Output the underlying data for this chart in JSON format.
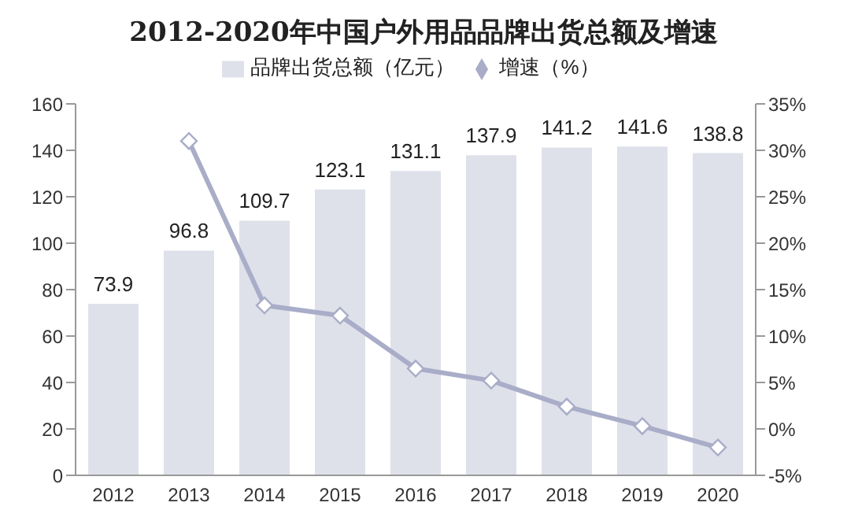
{
  "chart_data": {
    "type": "bar",
    "title": "2012-2020年中国户外用品品牌出货总额及增速",
    "categories": [
      "2012",
      "2013",
      "2014",
      "2015",
      "2016",
      "2017",
      "2018",
      "2019",
      "2020"
    ],
    "series": [
      {
        "name": "品牌出货总额（亿元）",
        "color": "#dfe1ea",
        "values": [
          73.9,
          96.8,
          109.7,
          123.1,
          131.1,
          137.9,
          141.2,
          141.6,
          138.8
        ],
        "value_labels": [
          "73.9",
          "96.8",
          "109.7",
          "123.1",
          "131.1",
          "137.9",
          "141.2",
          "141.6",
          "138.8"
        ]
      },
      {
        "name": "增速（%）",
        "type": "line",
        "axis": "y2",
        "color": "#a9adc8",
        "marker": "diamond",
        "values": [
          null,
          31.0,
          13.3,
          12.2,
          6.5,
          5.2,
          2.4,
          0.3,
          -2.0
        ]
      }
    ],
    "ylim": [
      0,
      160
    ],
    "yticks": [
      0,
      20,
      40,
      60,
      80,
      100,
      120,
      140,
      160
    ],
    "y2lim": [
      -5,
      35
    ],
    "y2ticks": [
      {
        "value": -5,
        "label": "-5%"
      },
      {
        "value": 0,
        "label": "0%"
      },
      {
        "value": 5,
        "label": "5%"
      },
      {
        "value": 10,
        "label": "10%"
      },
      {
        "value": 15,
        "label": "15%"
      },
      {
        "value": 20,
        "label": "20%"
      },
      {
        "value": 25,
        "label": "25%"
      },
      {
        "value": 30,
        "label": "30%"
      },
      {
        "value": 35,
        "label": "35%"
      }
    ],
    "grid": false,
    "legend": "top"
  }
}
